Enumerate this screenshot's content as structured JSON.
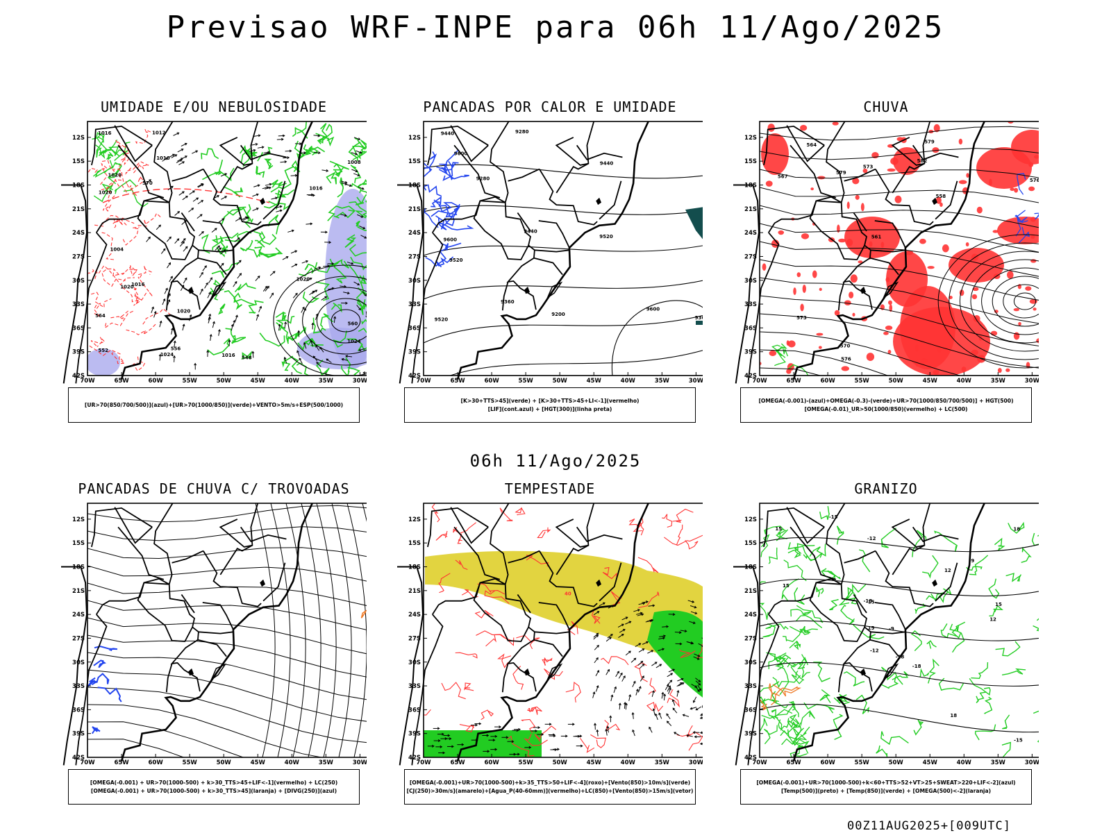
{
  "title": "Previsao WRF-INPE  para 06h 11/Ago/2025",
  "subtitle": "06h 11/Ago/2025",
  "footer": "00Z11AUG2025+[009UTC]",
  "axes": {
    "lat_labels": [
      "12S",
      "15S",
      "18S",
      "21S",
      "24S",
      "27S",
      "30S",
      "33S",
      "36S",
      "39S",
      "42S"
    ],
    "lon_labels": [
      "70W",
      "65W",
      "60W",
      "55W",
      "50W",
      "45W",
      "40W",
      "35W",
      "30W"
    ]
  },
  "colors": {
    "green": "#22cc22",
    "red": "#ff3333",
    "blue": "#2244ee",
    "lavender": "#aaaaee",
    "yellow": "#e0d236",
    "orange": "#ee7722",
    "dark_teal": "#134d4d"
  },
  "panels": [
    {
      "id": "umidade",
      "title": "UMIDADE E/OU NEBULOSIDADE",
      "legend": [
        "[UR>70(850/700/500)](azul)+[UR>70(1000/850)](verde)+VENTO>5m/s+ESP(500/1000)"
      ],
      "contour_labels": [
        "1016",
        "1016",
        "1016",
        "1020",
        "1020",
        "1024",
        "1024",
        "1020",
        "1012",
        "1008",
        "1004",
        "1016",
        "1020",
        "1016",
        "1020",
        "564",
        "560",
        "556",
        "552",
        "548",
        "570"
      ]
    },
    {
      "id": "pancadas-calor",
      "title": "PANCADAS POR CALOR E UMIDADE",
      "legend": [
        "[K>30+TTS>45](verde) + [K>30+TTS>45+LI<-1](vermelho)",
        "[LIF](cont.azul) + [HGT(300)](linha preta)"
      ],
      "contour_labels": [
        "9600",
        "9600",
        "9520",
        "9520",
        "9440",
        "9440",
        "9360",
        "9360",
        "9280",
        "9280",
        "9200",
        "9600",
        "9520",
        "9440"
      ]
    },
    {
      "id": "chuva",
      "title": "CHUVA",
      "legend": [
        "[OMEGA(-0.001)-(azul)+OMEGA(-0.3)-(verde)+UR>70(1000/850/700/500)] + HGT(500)",
        "[OMEGA(-0.01)_UR>50(1000/850)(vermelho) + LC(500)"
      ],
      "contour_labels": [
        "582",
        "579",
        "576",
        "573",
        "570",
        "567",
        "564",
        "561",
        "558",
        "579",
        "576",
        "573"
      ]
    },
    {
      "id": "pancadas-trovoadas",
      "title": "PANCADAS DE CHUVA C/ TROVOADAS",
      "legend": [
        "[OMEGA(-0.001) + UR>70(1000-500) + k>30_TTS>45+LIF<-1](vermelho) + LC(250)",
        "[OMEGA(-0.001) + UR>70(1000-500) + k>30_TTS>45](laranja) + [DIVG(250)](azul)"
      ],
      "contour_labels": []
    },
    {
      "id": "tempestade",
      "title": "TEMPESTADE",
      "legend": [
        "[OMEGA(-0.001)+UR>70(1000-500)+k>35_TTS>50+LIF<-4](roxo)+[Vento(850)>10m/s](verde)",
        "[CJ(250)>30m/s](amarelo)+[Agua_P(40-60mm)](vermelho)+LC(850)+[Vento(850)>15m/s](vetor)"
      ],
      "contour_labels": [
        "40",
        "40"
      ]
    },
    {
      "id": "granizo",
      "title": "GRANIZO",
      "legend": [
        "[OMEGA(-0.001)+UR>70(1000-500)+k<60+TTS>52+VT>25+SWEAT>220+LIF<-2](azul)",
        "[Temp(500)](preto) + [Temp(850)](verde) + [OMEGA(500)<-2](laranja)"
      ],
      "contour_labels": [
        "-9",
        "-9",
        "-12",
        "-15",
        "-15",
        "-18",
        "-18",
        "-12",
        "-15",
        "-18",
        "12",
        "15",
        "18",
        "15",
        "12",
        "15",
        "15",
        "18"
      ]
    }
  ]
}
